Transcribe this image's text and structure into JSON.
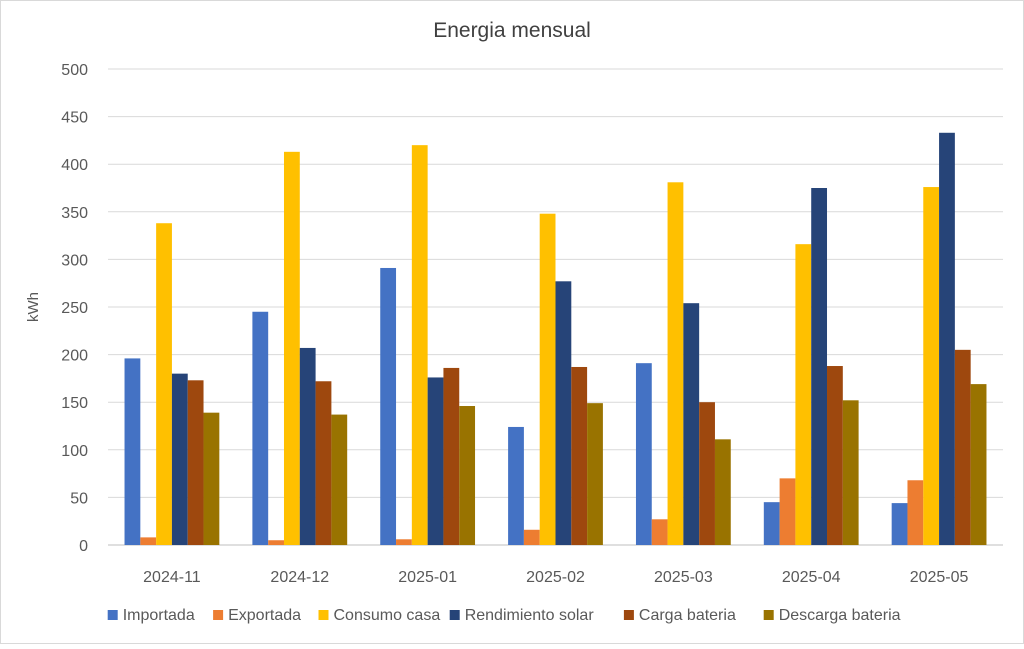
{
  "chart_data": {
    "type": "bar",
    "title": "Energia mensual",
    "xlabel": "",
    "ylabel": "kWh",
    "ylim": [
      0,
      500
    ],
    "yticks": [
      0,
      50,
      100,
      150,
      200,
      250,
      300,
      350,
      400,
      450,
      500
    ],
    "grid": true,
    "legend_position": "bottom",
    "categories": [
      "2024-11",
      "2024-12",
      "2025-01",
      "2025-02",
      "2025-03",
      "2025-04",
      "2025-05"
    ],
    "series": [
      {
        "name": "Importada",
        "color": "#4472C4",
        "values": [
          196,
          245,
          291,
          124,
          191,
          45,
          44
        ]
      },
      {
        "name": "Exportada",
        "color": "#ED7D31",
        "values": [
          8,
          5,
          6,
          16,
          27,
          70,
          68
        ]
      },
      {
        "name": "Consumo casa",
        "color": "#FFC000",
        "values": [
          338,
          413,
          420,
          348,
          381,
          316,
          376
        ]
      },
      {
        "name": "Rendimiento solar",
        "color": "#264478",
        "values": [
          180,
          207,
          176,
          277,
          254,
          375,
          433
        ]
      },
      {
        "name": "Carga bateria",
        "color": "#9E480E",
        "values": [
          173,
          172,
          186,
          187,
          150,
          188,
          205
        ]
      },
      {
        "name": "Descarga bateria",
        "color": "#997300",
        "values": [
          139,
          137,
          146,
          149,
          111,
          152,
          169
        ]
      }
    ]
  }
}
